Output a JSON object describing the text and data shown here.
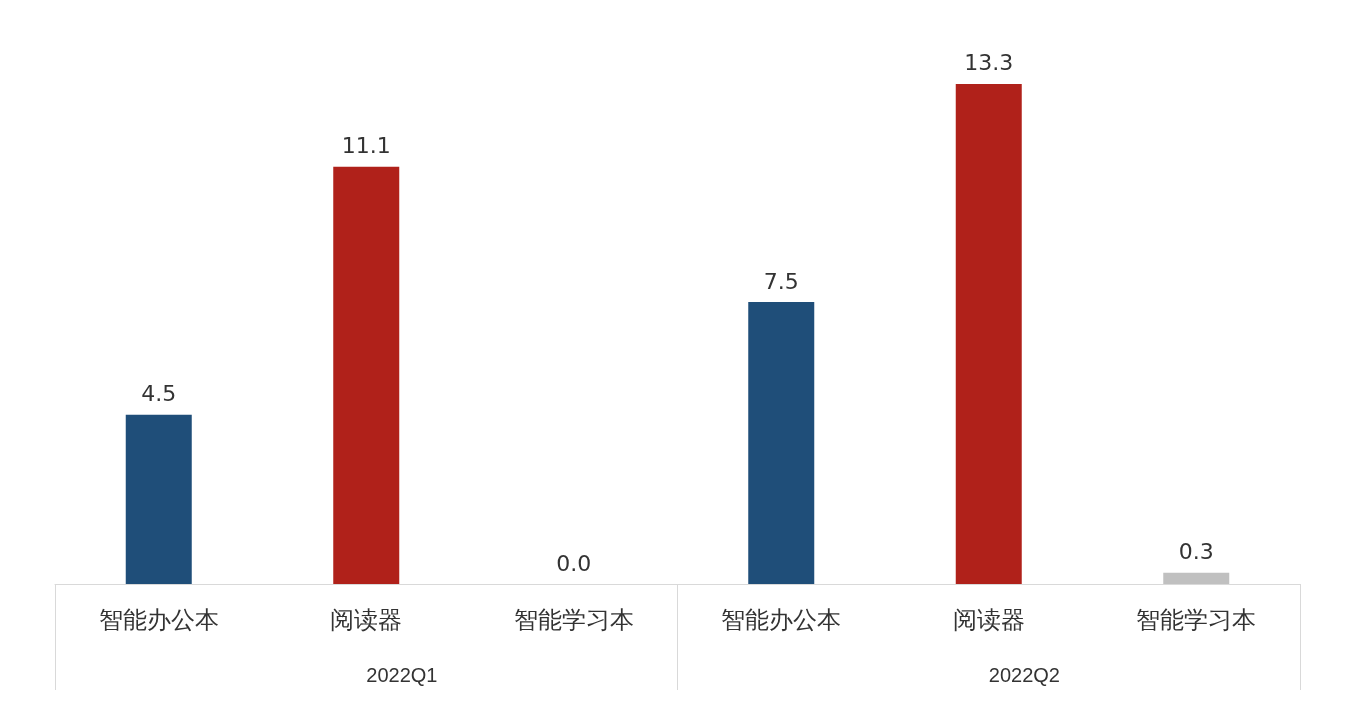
{
  "chart_data": {
    "type": "bar",
    "categories": [
      "智能办公本",
      "阅读器",
      "智能学习本",
      "智能办公本",
      "阅读器",
      "智能学习本"
    ],
    "values": [
      4.5,
      11.1,
      0.0,
      7.5,
      13.3,
      0.3
    ],
    "colors": [
      "#1f4e79",
      "#b0211a",
      "#c0c0c0",
      "#1f4e79",
      "#b0211a",
      "#c0c0c0"
    ],
    "annotations": [
      "2022Q1",
      "2022Q2"
    ],
    "value_labels": [
      "4.5",
      "11.1",
      "0.0",
      "7.5",
      "13.3",
      "0.3"
    ],
    "tick_labels": "x"
  }
}
